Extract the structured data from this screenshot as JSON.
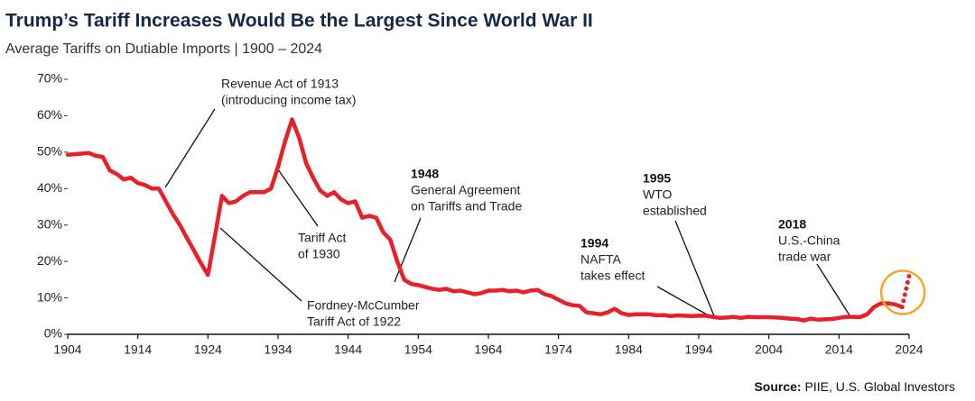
{
  "chart_data": {
    "type": "line",
    "title": "Trump’s Tariff Increases Would Be the Largest Since World War II",
    "subtitle": "Average Tariffs on Dutiable Imports | 1900 – 2024",
    "source_label": "Source:",
    "source": "PIIE, U.S. Global Investors",
    "xlim": [
      1904,
      2024
    ],
    "xticks": [
      1904,
      1914,
      1924,
      1934,
      1944,
      1954,
      1964,
      1974,
      1984,
      1994,
      2004,
      2014,
      2024
    ],
    "ylim": [
      0,
      70
    ],
    "yticks": [
      {
        "value": 0,
        "label": "0%"
      },
      {
        "value": 10,
        "label": "10%"
      },
      {
        "value": 20,
        "label": "20%"
      },
      {
        "value": 30,
        "label": "30%"
      },
      {
        "value": 40,
        "label": "40%"
      },
      {
        "value": 50,
        "label": "50%"
      },
      {
        "value": 60,
        "label": "60%"
      },
      {
        "value": 70,
        "label": "70%"
      }
    ],
    "grid": false,
    "series": [
      {
        "color": "#e8202a",
        "dash": "solid",
        "x": [
          1904,
          1906,
          1907,
          1908,
          1909,
          1910,
          1911,
          1912,
          1913,
          1914,
          1915,
          1916,
          1917,
          1918,
          1919,
          1920,
          1921,
          1922,
          1923,
          1924,
          1925,
          1926,
          1927,
          1928,
          1929,
          1930,
          1931,
          1932,
          1933,
          1934,
          1935,
          1936,
          1937,
          1938,
          1939,
          1940,
          1941,
          1942,
          1943,
          1944,
          1945,
          1946,
          1947,
          1948,
          1949,
          1950,
          1951,
          1952,
          1953,
          1954,
          1955,
          1956,
          1957,
          1958,
          1959,
          1960,
          1961,
          1962,
          1963,
          1964,
          1965,
          1966,
          1967,
          1968,
          1969,
          1970,
          1971,
          1972,
          1973,
          1974,
          1975,
          1976,
          1977,
          1978,
          1979,
          1980,
          1981,
          1982,
          1983,
          1984,
          1985,
          1986,
          1987,
          1988,
          1989,
          1990,
          1991,
          1992,
          1993,
          1994,
          1995,
          1996,
          1997,
          1998,
          1999,
          2000,
          2001,
          2002,
          2003,
          2004,
          2005,
          2006,
          2007,
          2008,
          2009,
          2010,
          2011,
          2012,
          2013,
          2014,
          2015,
          2016,
          2017,
          2018,
          2019,
          2020,
          2021,
          2022,
          2023
        ],
        "values": [
          49.3,
          49.6,
          49.8,
          49,
          48.7,
          45,
          44,
          42.5,
          43,
          41.5,
          41,
          40,
          40,
          36.5,
          33,
          30,
          26.5,
          23,
          19.5,
          16.3,
          27,
          38,
          36,
          36.5,
          38,
          39,
          39,
          39,
          40,
          46,
          53,
          59,
          54,
          47,
          43,
          39.5,
          38,
          39,
          37,
          36,
          36.5,
          32,
          32.5,
          32,
          28,
          26,
          20,
          15,
          13.8,
          13.5,
          13,
          12.5,
          12.2,
          12.5,
          11.8,
          12,
          11.5,
          11,
          11.3,
          12,
          12,
          12.2,
          11.8,
          12,
          11.5,
          12,
          12.2,
          11,
          10.5,
          9.5,
          8.5,
          8,
          7.8,
          6,
          5.8,
          5.5,
          6,
          7,
          5.8,
          5.3,
          5.5,
          5.5,
          5.5,
          5.2,
          5.3,
          5,
          5.2,
          5.1,
          5,
          5.1,
          5.1,
          4.8,
          4.5,
          4.6,
          4.8,
          4.5,
          4.8,
          4.7,
          4.7,
          4.7,
          4.6,
          4.5,
          4.3,
          4.2,
          3.8,
          4.3,
          4,
          4.1,
          4.2,
          4.5,
          4.8,
          4.8,
          4.7,
          5.5,
          7.5,
          8.5,
          8.5,
          8.2,
          7.5
        ]
      },
      {
        "color": "#e8202a",
        "dash": "dotted",
        "x": [
          2023,
          2024
        ],
        "values": [
          7.5,
          16
        ]
      }
    ],
    "highlight_color": "#f5a623",
    "annotations": [
      {
        "lines": [
          "Revenue Act of 1913",
          "(introducing income tax)"
        ]
      },
      {
        "lines": [
          "Tariff Act",
          "of 1930"
        ]
      },
      {
        "lines": [
          "Fordney-McCumber",
          "Tariff Act of 1922"
        ]
      },
      {
        "year": "1948",
        "lines": [
          "General Agreement",
          "on Tariffs and Trade"
        ]
      },
      {
        "year": "1994",
        "lines": [
          "NAFTA",
          "takes effect"
        ]
      },
      {
        "year": "1995",
        "lines": [
          "WTO",
          "established"
        ]
      },
      {
        "year": "2018",
        "lines": [
          "U.S.-China",
          "trade war"
        ]
      }
    ]
  }
}
